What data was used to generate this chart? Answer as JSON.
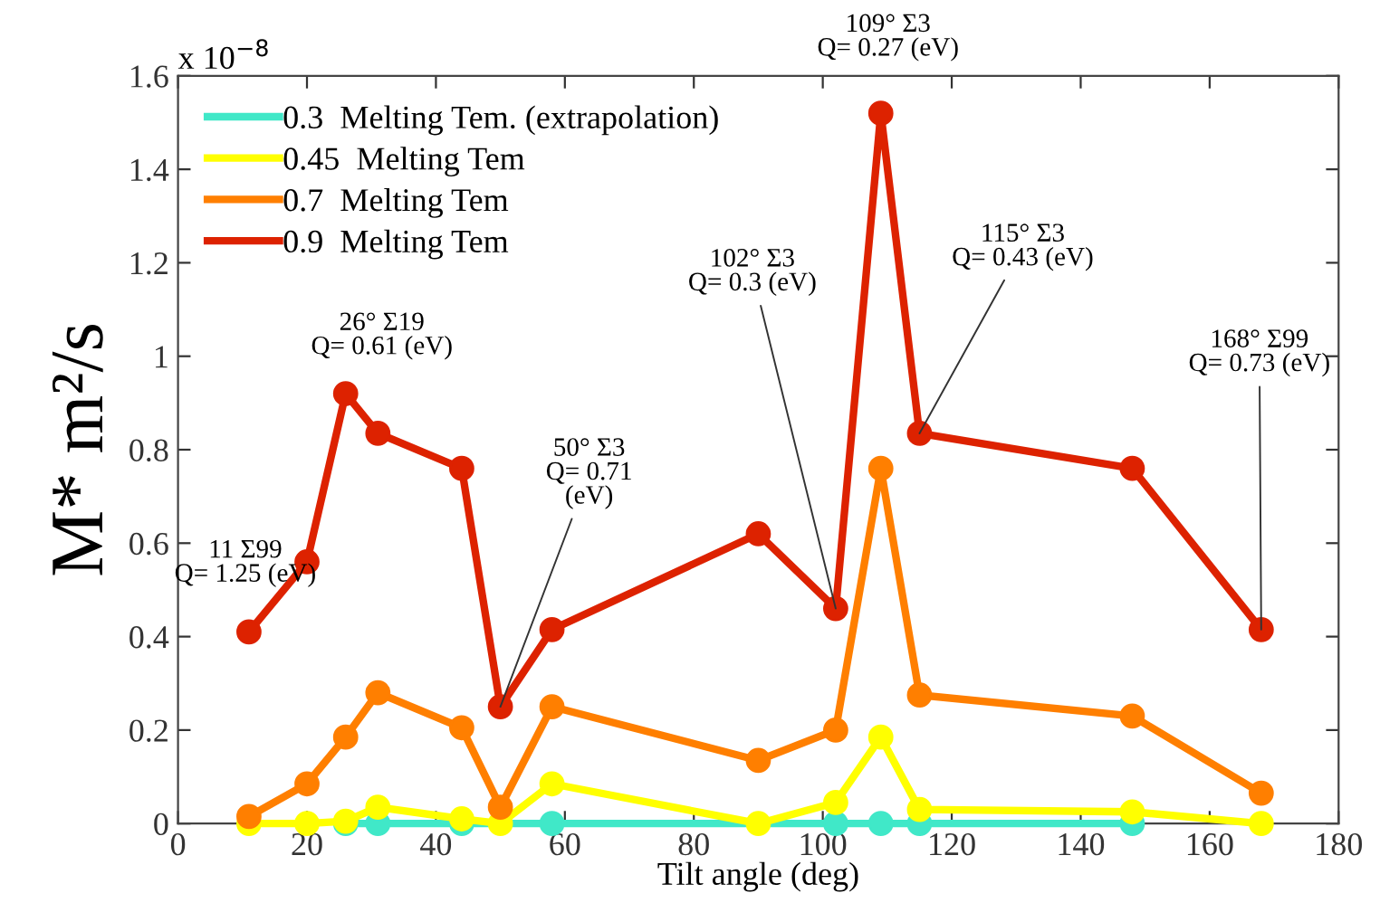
{
  "chart_data": {
    "type": "line",
    "xlabel": "Tilt angle (deg)",
    "ylabel": "M* m²/s",
    "xlim": [
      0,
      180
    ],
    "xticks": [
      0,
      20,
      40,
      60,
      80,
      100,
      120,
      140,
      160,
      180
    ],
    "ylim": [
      0,
      1.6
    ],
    "yticks": [
      0,
      0.2,
      0.4,
      0.6,
      0.8,
      1,
      1.2,
      1.4,
      1.6
    ],
    "grid": false,
    "legend": "top left",
    "marker": "circle",
    "line_style": "solid",
    "series": [
      {
        "name": "0.3  Melting Tem. (extrapolation)",
        "color": "#40e8c8",
        "x": [
          26,
          31,
          44,
          58,
          102,
          109,
          115,
          148
        ],
        "values": [
          0,
          0,
          0,
          0,
          0,
          0,
          0,
          0
        ]
      },
      {
        "name": "0.45  Melting Tem",
        "color": "#ffff00",
        "x": [
          11,
          20,
          26,
          31,
          44,
          50,
          58,
          90,
          102,
          109,
          115,
          148,
          168
        ],
        "values": [
          0,
          0,
          0.005,
          0.035,
          0.01,
          0,
          0.085,
          0,
          0.045,
          0.185,
          0.03,
          0.025,
          0
        ]
      },
      {
        "name": "0.7  Melting Tem",
        "color": "#ff7f00",
        "x": [
          11,
          20,
          26,
          31,
          44,
          50,
          58,
          90,
          102,
          109,
          115,
          148,
          168
        ],
        "values": [
          0.015,
          0.085,
          0.185,
          0.28,
          0.205,
          0.035,
          0.25,
          0.135,
          0.2,
          0.76,
          0.275,
          0.23,
          0.065
        ]
      },
      {
        "name": "0.9  Melting Tem",
        "color": "#dd2200",
        "x": [
          11,
          20,
          26,
          31,
          44,
          50,
          58,
          90,
          102,
          109,
          115,
          148,
          168
        ],
        "values": [
          0.41,
          0.56,
          0.92,
          0.835,
          0.76,
          0.25,
          0.415,
          0.62,
          0.46,
          1.52,
          0.835,
          0.76,
          0.415
        ]
      }
    ],
    "annotations": [
      "x 10$^{−8}$",
      {
        "text": "11 Σ99\nQ= 1.25 (eV)",
        "x": 11,
        "y": 0.41
      },
      {
        "text": "26° Σ19\nQ= 0.61 (eV)",
        "x": 26,
        "y": 0.92
      },
      {
        "text": "50° Σ3\nQ= 0.71\n(eV)",
        "x": 50,
        "y": 0.25
      },
      {
        "text": "102° Σ3\nQ= 0.3 (eV)",
        "x": 102,
        "y": 0.46
      },
      {
        "text": "109° Σ3\nQ= 0.27 (eV)",
        "x": 109,
        "y": 1.52
      },
      {
        "text": "115° Σ3\nQ= 0.43 (eV)",
        "x": 115,
        "y": 0.835
      },
      {
        "text": "168° Σ99\nQ= 0.73 (eV)",
        "x": 168,
        "y": 0.415
      }
    ]
  }
}
